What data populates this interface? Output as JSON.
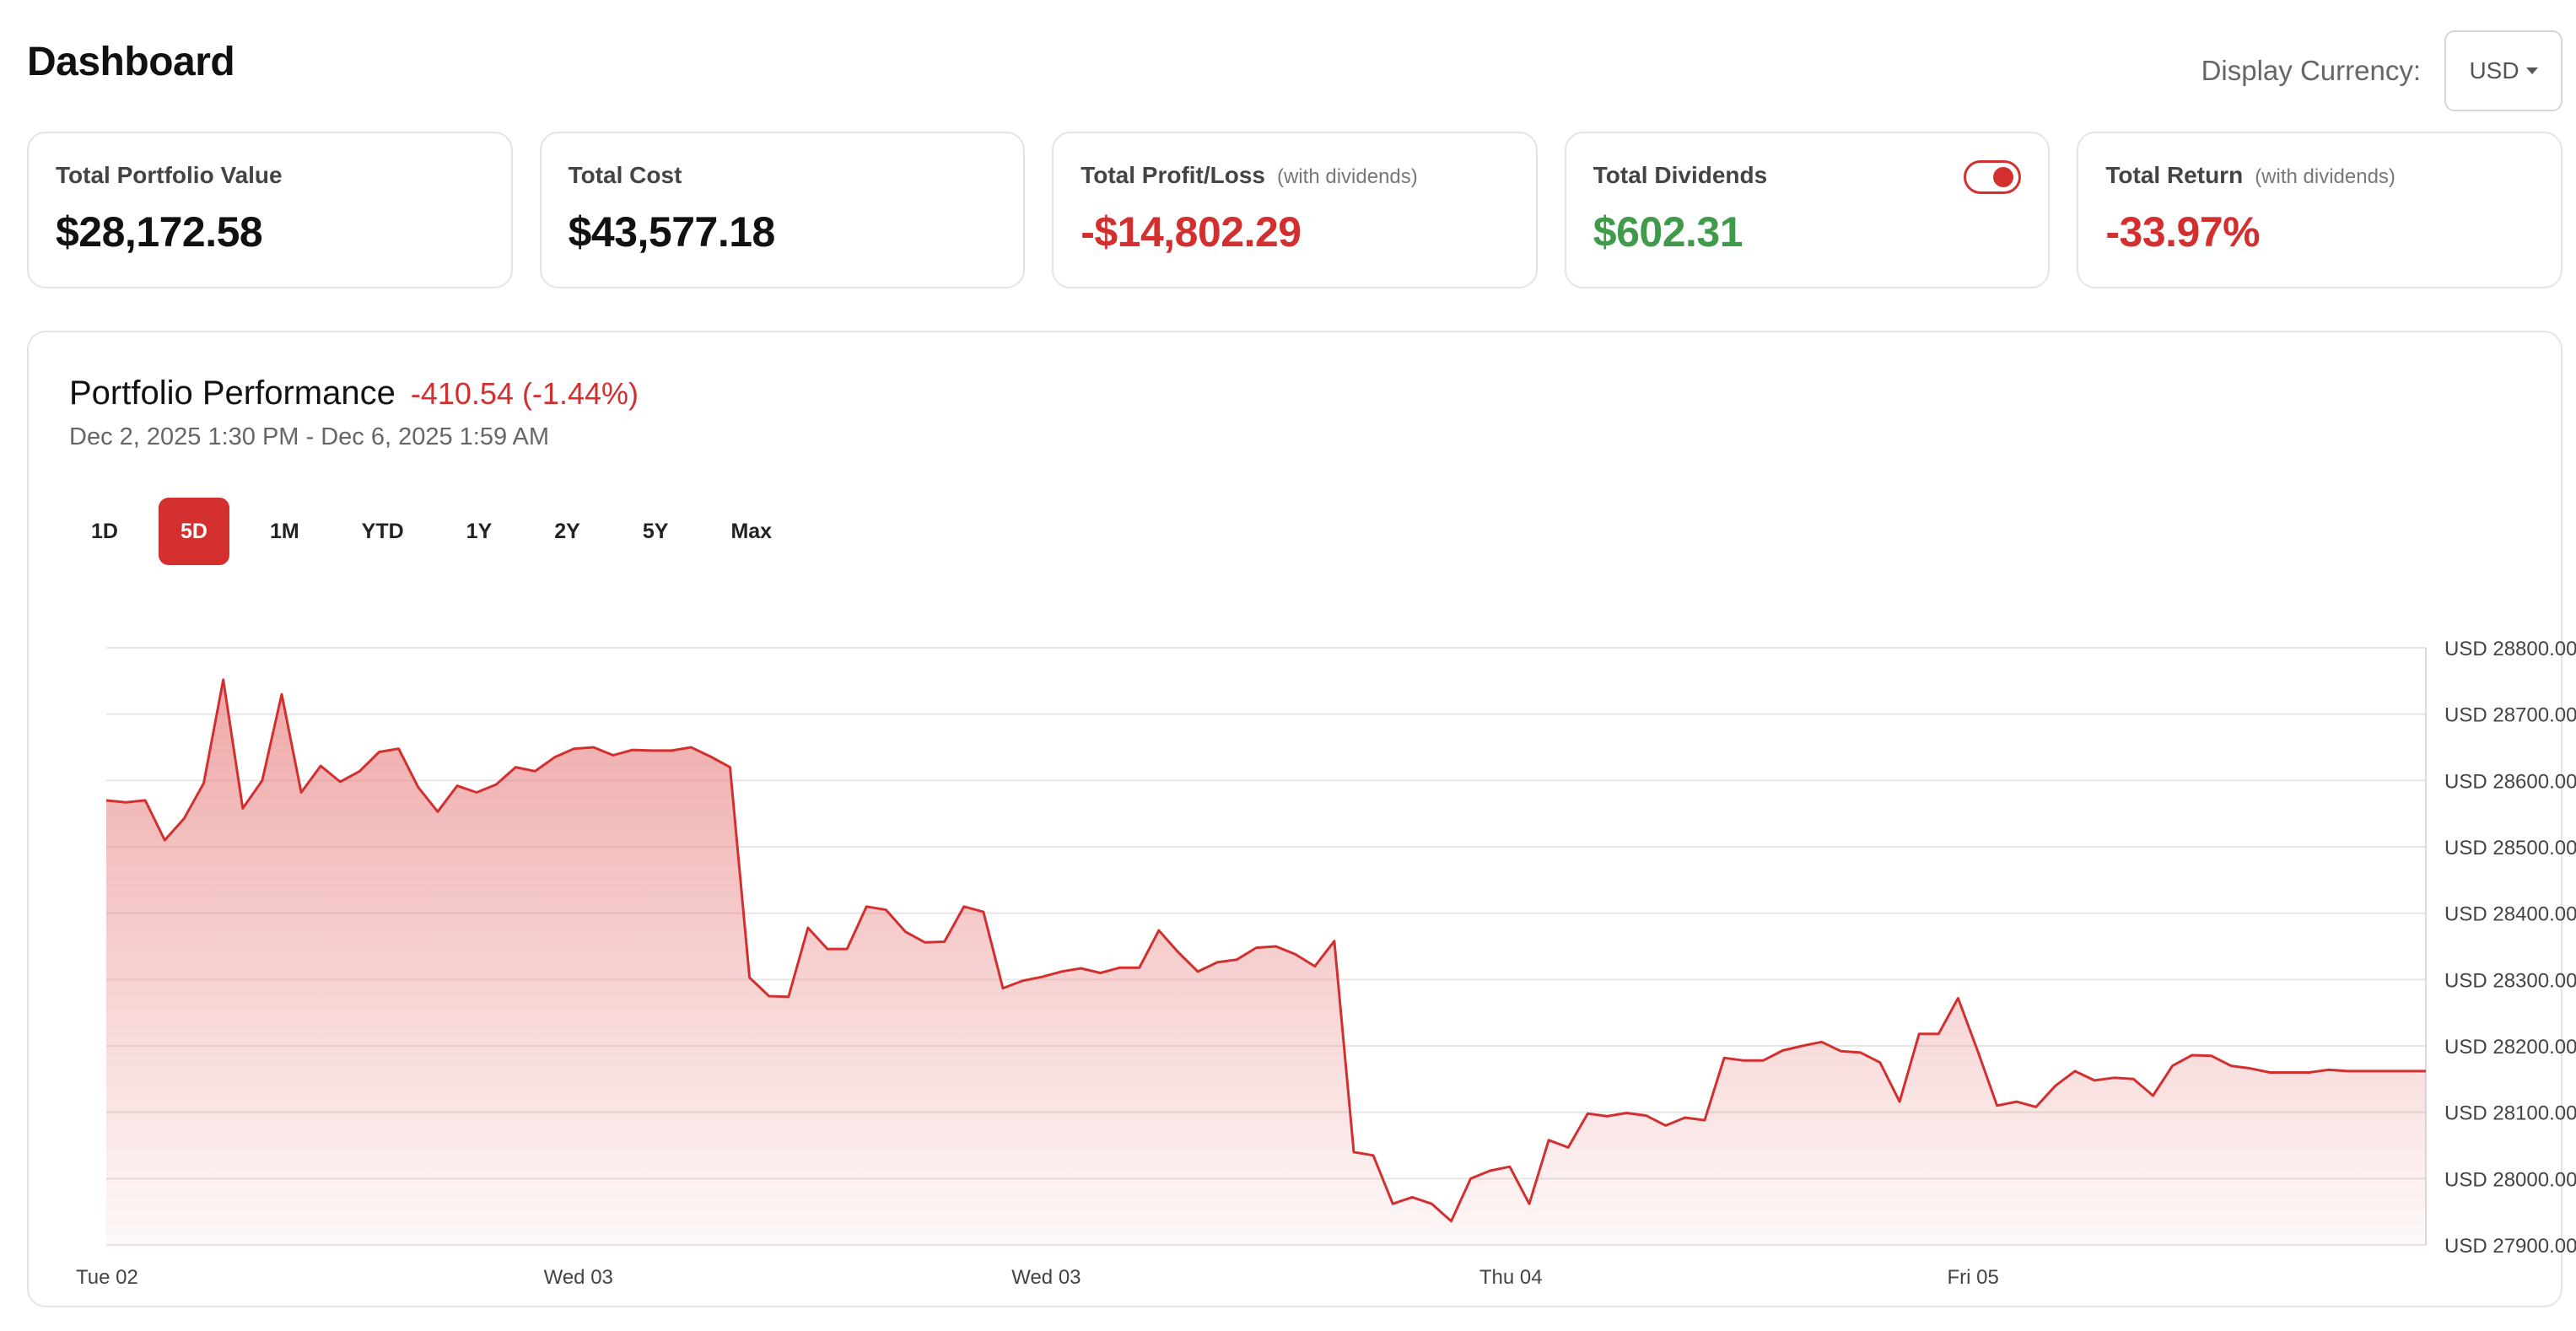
{
  "header": {
    "title": "Dashboard",
    "currency_label": "Display Currency:",
    "currency_value": "USD"
  },
  "cards": [
    {
      "label": "Total Portfolio Value",
      "sub": "",
      "value": "$28,172.58",
      "tone": "dark"
    },
    {
      "label": "Total Cost",
      "sub": "",
      "value": "$43,577.18",
      "tone": "dark"
    },
    {
      "label": "Total Profit/Loss",
      "sub": "(with dividends)",
      "value": "-$14,802.29",
      "tone": "neg"
    },
    {
      "label": "Total Dividends",
      "sub": "",
      "value": "$602.31",
      "tone": "pos",
      "toggle_on": true
    },
    {
      "label": "Total Return",
      "sub": "(with dividends)",
      "value": "-33.97%",
      "tone": "neg"
    }
  ],
  "performance": {
    "title": "Portfolio Performance",
    "change": "-410.54 (-1.44%)",
    "date_range": "Dec 2, 2025 1:30 PM - Dec 6, 2025 1:59 AM",
    "ranges": [
      "1D",
      "5D",
      "1M",
      "YTD",
      "1Y",
      "2Y",
      "5Y",
      "Max"
    ],
    "active_range": "5D"
  },
  "colors": {
    "accent": "#d32f2f",
    "positive": "#3f9a4a",
    "border": "#e4e4e4",
    "grid": "#e6e6e6"
  },
  "chart_data": {
    "type": "area",
    "title": "",
    "xlabel": "",
    "ylabel": "",
    "ylim": [
      27900,
      28800
    ],
    "y_ticks": [
      "USD 28800.00",
      "USD 28700.00",
      "USD 28600.00",
      "USD 28500.00",
      "USD 28400.00",
      "USD 28300.00",
      "USD 28200.00",
      "USD 28100.00",
      "USD 28000.00",
      "USD 27900.00"
    ],
    "x_tick_labels": [
      "Tue 02",
      "Wed 03",
      "Wed 03",
      "Thu 04",
      "Fri 05"
    ],
    "x_tick_indices": [
      0,
      24,
      48,
      72,
      96
    ],
    "grid": true,
    "legend": "none",
    "series": [
      {
        "values": [
          28570,
          28567,
          28570,
          28510,
          28543,
          28596,
          28752,
          28558,
          28600,
          28730,
          28582,
          28622,
          28598,
          28614,
          28643,
          28648,
          28590,
          28553,
          28592,
          28582,
          28594,
          28620,
          28614,
          28635,
          28648,
          28650,
          28638,
          28646,
          28645,
          28645,
          28650,
          28636,
          28620,
          28303,
          28275,
          28274,
          28378,
          28346,
          28346,
          28410,
          28405,
          28372,
          28356,
          28357,
          28410,
          28402,
          28287,
          28298,
          28304,
          28312,
          28317,
          28310,
          28318,
          28318,
          28374,
          28341,
          28312,
          28326,
          28330,
          28348,
          28350,
          28338,
          28320,
          28358,
          28040,
          28035,
          27962,
          27972,
          27962,
          27936,
          28000,
          28012,
          28018,
          27962,
          28058,
          28047,
          28098,
          28094,
          28099,
          28095,
          28080,
          28092,
          28088,
          28182,
          28178,
          28178,
          28193,
          28200,
          28206,
          28192,
          28190,
          28175,
          28116,
          28218,
          28218,
          28272,
          28193,
          28110,
          28116,
          28108,
          28140,
          28162,
          28148,
          28152,
          28150,
          28125,
          28170,
          28186,
          28185,
          28170,
          28166,
          28160,
          28160,
          28160,
          28164,
          28162,
          28162,
          28162,
          28162,
          28162
        ]
      }
    ]
  }
}
